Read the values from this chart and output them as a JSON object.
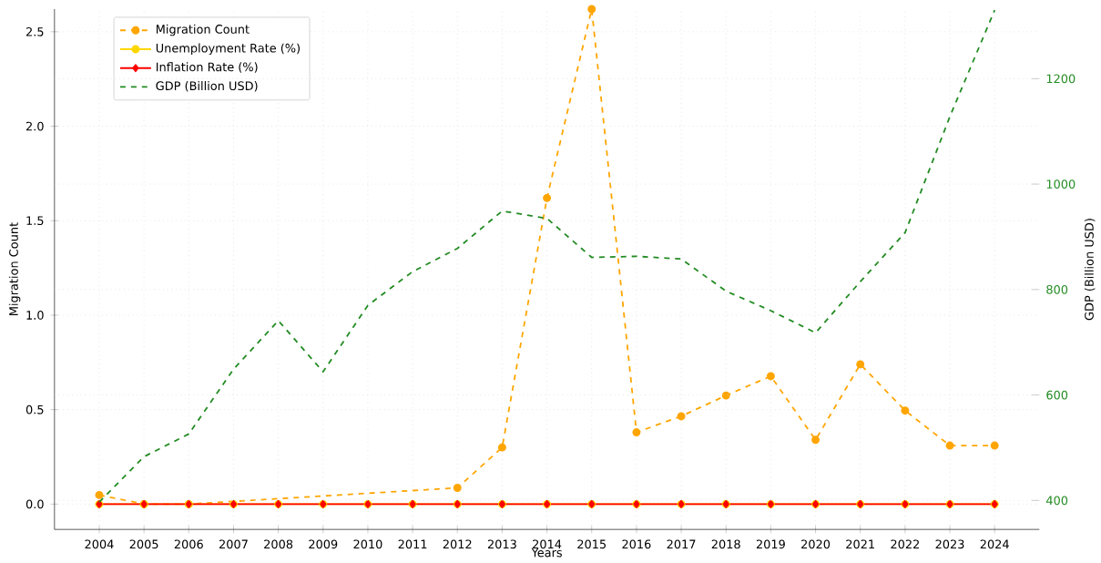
{
  "chart_data": {
    "type": "line",
    "xlabel": "Years",
    "ylabel": "Migration Count",
    "y2label": "GDP (Billion USD)",
    "x": [
      2004,
      2005,
      2006,
      2007,
      2008,
      2009,
      2010,
      2011,
      2012,
      2013,
      2014,
      2015,
      2016,
      2017,
      2018,
      2019,
      2020,
      2021,
      2022,
      2023,
      2024
    ],
    "series": [
      {
        "name": "Migration Count",
        "color": "#ffa500",
        "marker": "circle",
        "line_style": "dashed",
        "values": [
          0.048,
          0,
          0,
          null,
          null,
          null,
          null,
          null,
          0.086,
          0.3,
          1.62,
          2.62,
          0.38,
          0.465,
          0.575,
          0.677,
          0.34,
          0.74,
          0.495,
          0.31,
          0.31
        ]
      },
      {
        "name": "Unemployment Rate (%)",
        "color": "#ffd700",
        "marker": "circle",
        "line_style": "solid",
        "values": [
          0,
          0,
          0,
          0,
          0,
          0,
          0,
          0,
          0,
          0,
          0,
          0,
          0,
          0,
          0,
          0,
          0,
          0,
          0,
          0,
          0
        ]
      },
      {
        "name": "Inflation Rate (%)",
        "color": "#ff0000",
        "marker": "diamond",
        "line_style": "solid",
        "values": [
          0,
          0,
          0,
          0,
          0,
          0,
          0,
          0,
          0,
          0,
          0,
          0,
          0,
          0,
          0,
          0,
          0,
          0,
          0,
          0,
          0
        ]
      },
      {
        "name": "GDP (Billion USD)",
        "color": "#228b22",
        "marker": "none",
        "line_style": "dashed",
        "axis": "y2",
        "values": [
          397,
          483,
          526,
          649,
          741,
          644,
          770,
          834,
          878,
          949,
          935,
          861,
          863,
          858,
          797,
          760,
          718,
          815,
          908,
          1128,
          1330
        ]
      }
    ],
    "xlim": [
      2003,
      2025
    ],
    "xticks": [
      2004,
      2005,
      2006,
      2007,
      2008,
      2009,
      2010,
      2011,
      2012,
      2013,
      2014,
      2015,
      2016,
      2017,
      2018,
      2019,
      2020,
      2021,
      2022,
      2023,
      2024
    ],
    "ylim": [
      -0.134,
      2.62
    ],
    "yticks": [
      {
        "value": 0,
        "label": "0.0"
      },
      {
        "value": 0.5,
        "label": "0.5"
      },
      {
        "value": 1,
        "label": "1.0"
      },
      {
        "value": 1.5,
        "label": "1.5"
      },
      {
        "value": 2,
        "label": "2.0"
      },
      {
        "value": 2.5,
        "label": "2.5"
      }
    ],
    "y2lim": [
      345,
      1332
    ],
    "y2ticks": [
      400,
      600,
      800,
      1000,
      1200
    ],
    "grid": true,
    "legend": "top left"
  }
}
